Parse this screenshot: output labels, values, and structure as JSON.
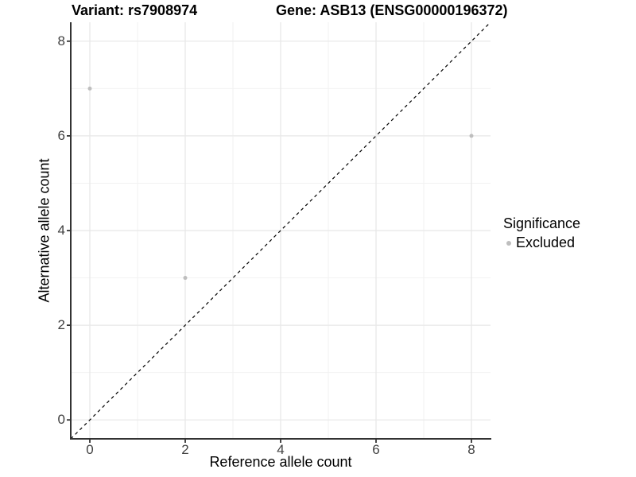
{
  "figure": {
    "titles": {
      "variant": "Variant: rs7908974",
      "gene": "Gene: ASB13 (ENSG00000196372)"
    }
  },
  "chart_data": {
    "type": "scatter",
    "title_left": "Variant: rs7908974",
    "title_right": "Gene: ASB13 (ENSG00000196372)",
    "xlabel": "Reference allele count",
    "ylabel": "Alternative allele count",
    "xlim": [
      -0.4,
      8.4
    ],
    "ylim": [
      -0.4,
      8.4
    ],
    "xticks": [
      0,
      2,
      4,
      6,
      8
    ],
    "yticks": [
      0,
      2,
      4,
      6,
      8
    ],
    "minor_xticks": [
      1,
      3,
      5,
      7
    ],
    "minor_yticks": [
      1,
      3,
      5,
      7
    ],
    "grid": "major+minor",
    "reference_line": {
      "type": "identity",
      "style": "dashed",
      "color": "#000000"
    },
    "series": [
      {
        "name": "Excluded",
        "color": "#bebebe",
        "points": [
          [
            0,
            7
          ],
          [
            2,
            3
          ],
          [
            8,
            6
          ]
        ]
      }
    ],
    "legend": {
      "title": "Significance",
      "position": "right",
      "items": [
        {
          "label": "Excluded",
          "color": "#bebebe"
        }
      ]
    }
  },
  "colors": {
    "axis": "#333333",
    "grid_major": "#e7e7e7",
    "grid_minor": "#f2f2f2",
    "tick_label": "#404040",
    "background": "#ffffff"
  }
}
